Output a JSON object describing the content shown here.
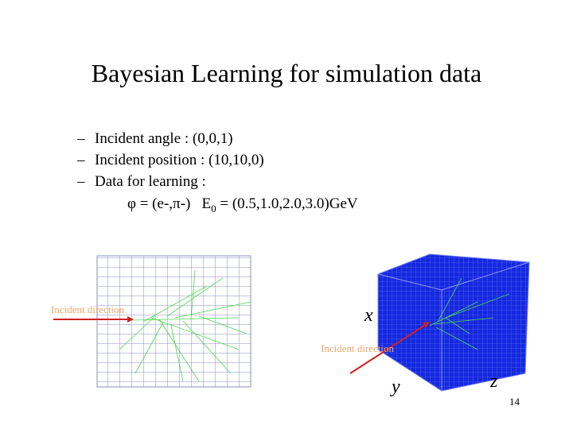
{
  "slide": {
    "title": "Bayesian Learning for simulation data",
    "bullets": [
      "Incident angle : (0,0,1)",
      "Incident position : (10,10,0)",
      "Data for learning :"
    ],
    "formula": {
      "particles": "φ = (e-,π-)",
      "energy_symbol": "E",
      "energy_subscript": "0",
      "energy_values": " = (0.5,1.0,2.0,3.0)GeV"
    },
    "figure_left": {
      "label": "Incident direction"
    },
    "figure_right": {
      "label": "Incident direction",
      "axis_x": "x",
      "axis_y": "y",
      "axis_z": "z"
    },
    "page_number": "14"
  }
}
